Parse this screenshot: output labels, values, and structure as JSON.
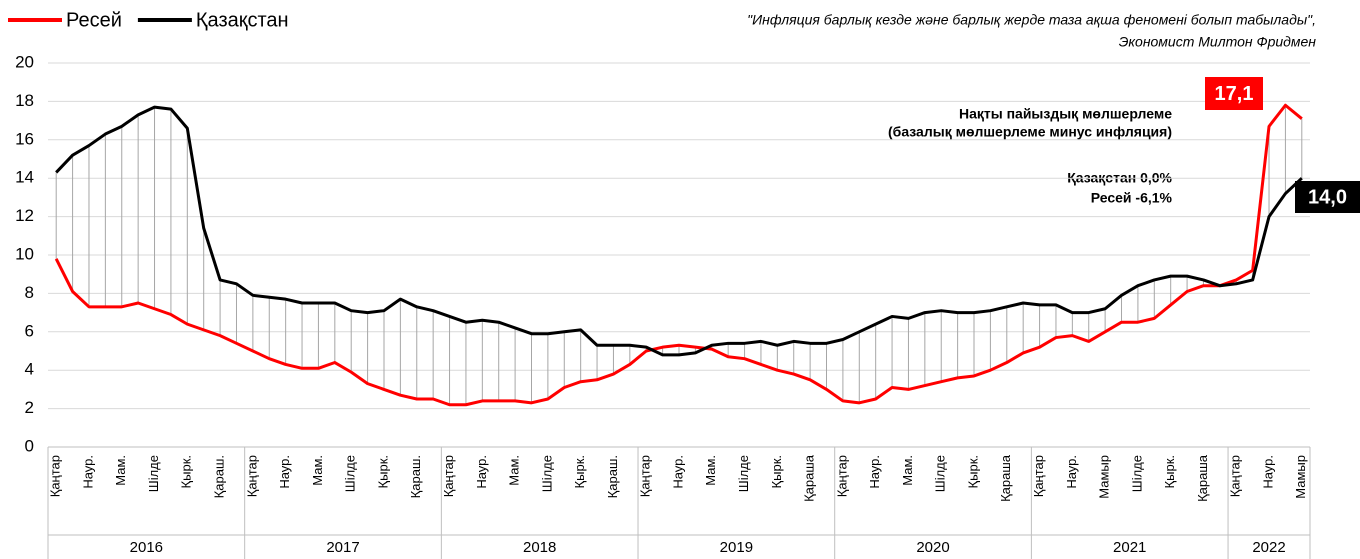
{
  "chart_data": {
    "type": "line",
    "categories": [
      "Қаңтар",
      null,
      "Наур.",
      null,
      "Мам.",
      null,
      "Шілде",
      null,
      "Қырк.",
      null,
      "Қараш.",
      null,
      "Қаңтар",
      null,
      "Наур.",
      null,
      "Мам.",
      null,
      "Шілде",
      null,
      "Қырк.",
      null,
      "Қараш.",
      null,
      "Қаңтар",
      null,
      "Наур.",
      null,
      "Мам.",
      null,
      "Шілде",
      null,
      "Қырк.",
      null,
      "Қараш.",
      null,
      "Қаңтар",
      null,
      "Наур.",
      null,
      "Мам.",
      null,
      "Шілде",
      null,
      "Қырк.",
      null,
      "Қараша",
      null,
      "Қаңтар",
      null,
      "Наур.",
      null,
      "Мам.",
      null,
      "Шілде",
      null,
      "Қырк.",
      null,
      "Қараша",
      null,
      "Қаңтар",
      null,
      "Наур.",
      null,
      "Мамыр",
      null,
      "Шілде",
      null,
      "Қырк.",
      null,
      "Қараша",
      null,
      "Қаңтар",
      null,
      "Наур.",
      null,
      "Мамыр"
    ],
    "years": [
      "2016",
      "2017",
      "2018",
      "2019",
      "2020",
      "2021",
      "2022"
    ],
    "series": [
      {
        "name": "Ресей",
        "color": "#ff0000",
        "values": [
          9.8,
          8.1,
          7.3,
          7.3,
          7.3,
          7.5,
          7.2,
          6.9,
          6.4,
          6.1,
          5.8,
          5.4,
          5.0,
          4.6,
          4.3,
          4.1,
          4.1,
          4.4,
          3.9,
          3.3,
          3.0,
          2.7,
          2.5,
          2.5,
          2.2,
          2.2,
          2.4,
          2.4,
          2.4,
          2.3,
          2.5,
          3.1,
          3.4,
          3.5,
          3.8,
          4.3,
          5.0,
          5.2,
          5.3,
          5.2,
          5.1,
          4.7,
          4.6,
          4.3,
          4.0,
          3.8,
          3.5,
          3.0,
          2.4,
          2.3,
          2.5,
          3.1,
          3.0,
          3.2,
          3.4,
          3.6,
          3.7,
          4.0,
          4.4,
          4.9,
          5.2,
          5.7,
          5.8,
          5.5,
          6.0,
          6.5,
          6.5,
          6.7,
          7.4,
          8.1,
          8.4,
          8.4,
          8.7,
          9.2,
          16.7,
          17.8,
          17.1
        ],
        "value_labels": [
          null,
          null,
          null,
          null,
          null,
          null,
          null,
          null,
          null,
          null,
          null,
          null,
          null,
          null,
          null,
          null,
          null,
          null,
          null,
          null,
          null,
          null,
          null,
          null,
          null,
          null,
          null,
          null,
          null,
          null,
          null,
          null,
          null,
          null,
          null,
          null,
          null,
          null,
          null,
          null,
          null,
          null,
          null,
          null,
          null,
          null,
          null,
          null,
          null,
          null,
          null,
          null,
          null,
          null,
          null,
          null,
          null,
          null,
          null,
          null,
          null,
          null,
          null,
          null,
          null,
          null,
          null,
          null,
          null,
          null,
          null,
          null,
          null,
          null,
          null,
          null,
          "17,1"
        ]
      },
      {
        "name": "Қазақстан",
        "color": "#000000",
        "values": [
          14.3,
          15.2,
          15.7,
          16.3,
          16.7,
          17.3,
          17.7,
          17.6,
          16.6,
          11.4,
          8.7,
          8.5,
          7.9,
          7.8,
          7.7,
          7.5,
          7.5,
          7.5,
          7.1,
          7.0,
          7.1,
          7.7,
          7.3,
          7.1,
          6.8,
          6.5,
          6.6,
          6.5,
          6.2,
          5.9,
          5.9,
          6.0,
          6.1,
          5.3,
          5.3,
          5.3,
          5.2,
          4.8,
          4.8,
          4.9,
          5.3,
          5.4,
          5.4,
          5.5,
          5.3,
          5.5,
          5.4,
          5.4,
          5.6,
          6.0,
          6.4,
          6.8,
          6.7,
          7.0,
          7.1,
          7.0,
          7.0,
          7.1,
          7.3,
          7.5,
          7.4,
          7.4,
          7.0,
          7.0,
          7.2,
          7.9,
          8.4,
          8.7,
          8.9,
          8.9,
          8.7,
          8.4,
          8.5,
          8.7,
          12.0,
          13.2,
          14.0
        ],
        "value_labels": [
          null,
          null,
          null,
          null,
          null,
          null,
          null,
          null,
          null,
          null,
          null,
          null,
          null,
          null,
          null,
          null,
          null,
          null,
          null,
          null,
          null,
          null,
          null,
          null,
          null,
          null,
          null,
          null,
          null,
          null,
          null,
          null,
          null,
          null,
          null,
          null,
          null,
          null,
          null,
          null,
          null,
          null,
          null,
          null,
          null,
          null,
          null,
          null,
          null,
          null,
          null,
          null,
          null,
          null,
          null,
          null,
          null,
          null,
          null,
          null,
          null,
          null,
          null,
          null,
          null,
          null,
          null,
          null,
          null,
          null,
          null,
          null,
          null,
          null,
          null,
          null,
          "14,0"
        ]
      }
    ],
    "ylim": [
      0,
      20
    ],
    "yticks": [
      0,
      2,
      4,
      6,
      8,
      10,
      12,
      14,
      16,
      18,
      20
    ],
    "grid": true,
    "droplines": true,
    "legend": "top-left",
    "quote": [
      "\"Инфляция барлық кезде және барлық жерде таза ақша феномені болып табылады\",",
      "Экономист Милтон Фридмен"
    ],
    "annotations": [
      "Нақты пайыздық мөлшерлеме",
      "(базалық мөлшерлеме минус инфляция)",
      "Қазақстан 0,0%",
      "Ресей -6,1%"
    ]
  }
}
